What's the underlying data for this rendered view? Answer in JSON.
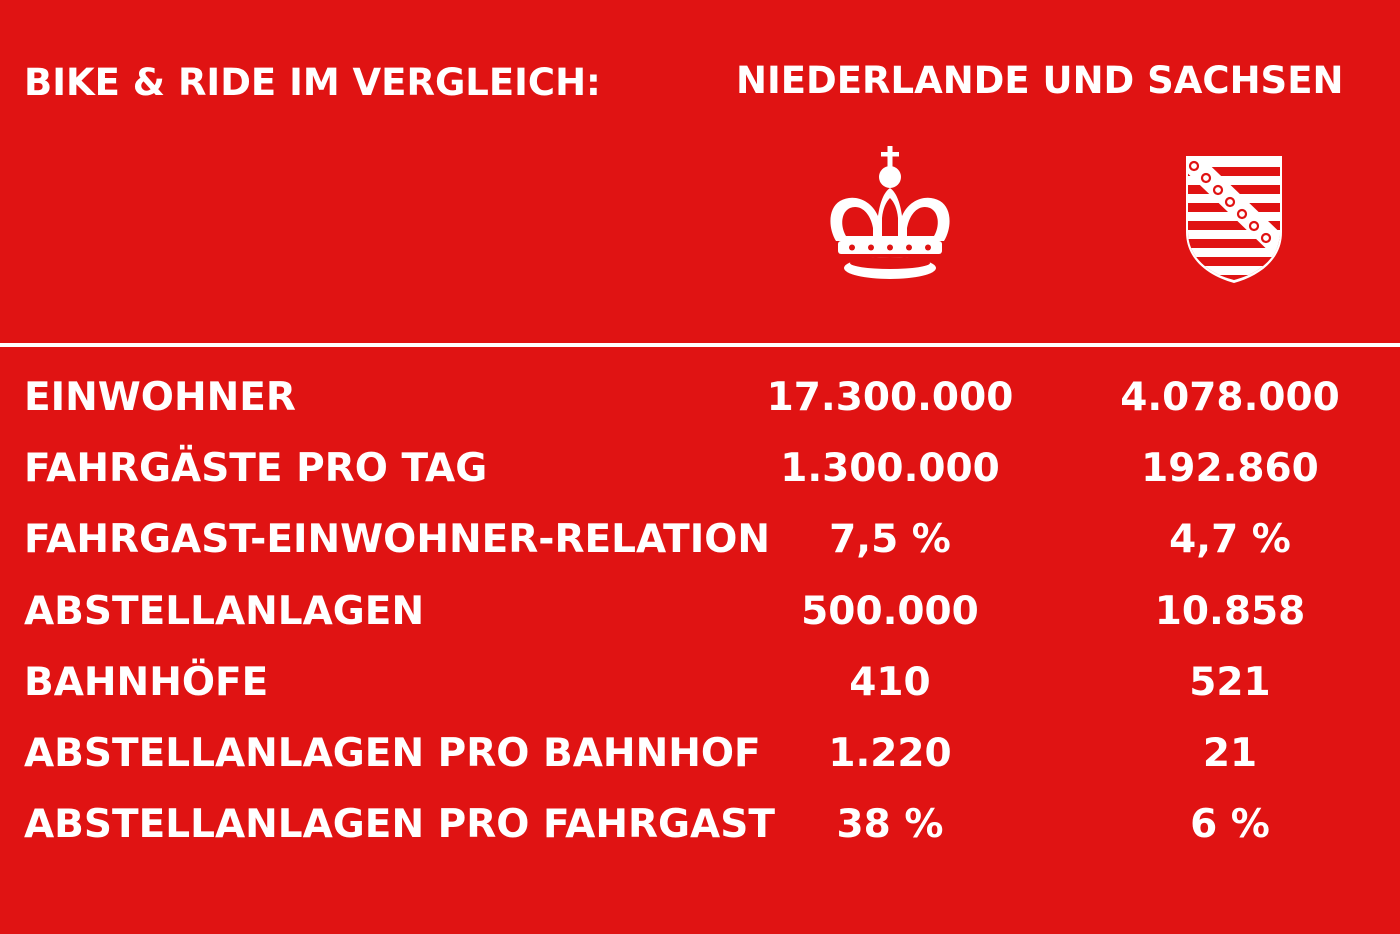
{
  "header": {
    "title": "BIKE & RIDE IM VERGLEICH:",
    "subtitle": "NIEDERLANDE UND SACHSEN"
  },
  "columns": [
    {
      "icon": "crown-icon"
    },
    {
      "icon": "saxony-coat-of-arms-icon"
    }
  ],
  "colors": {
    "background": "#e01313",
    "text": "#ffffff"
  },
  "rows": [
    {
      "label": "EINWOHNER",
      "netherlands": "17.300.000",
      "saxony": "4.078.000"
    },
    {
      "label": "FAHRGÄSTE PRO TAG",
      "netherlands": "1.300.000",
      "saxony": "192.860"
    },
    {
      "label": "FAHRGAST-EINWOHNER-RELATION",
      "netherlands": "7,5 %",
      "saxony": "4,7 %"
    },
    {
      "label": "ABSTELLANLAGEN",
      "netherlands": "500.000",
      "saxony": "10.858"
    },
    {
      "label": "BAHNHÖFE",
      "netherlands": "410",
      "saxony": "521"
    },
    {
      "label": "ABSTELLANLAGEN PRO BAHNHOF",
      "netherlands": "1.220",
      "saxony": "21"
    },
    {
      "label": "ABSTELLANLAGEN PRO FAHRGAST",
      "netherlands": "38 %",
      "saxony": "6 %"
    }
  ]
}
